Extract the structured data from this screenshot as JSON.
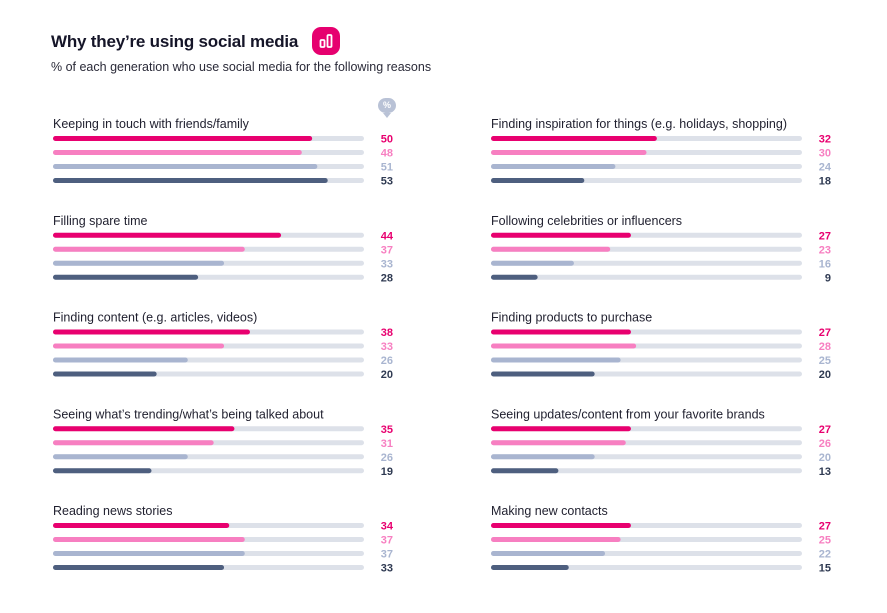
{
  "header": {
    "title": "Why they’re using social media",
    "subtitle": "% of each generation who use social media for the following reasons",
    "unit_marker": "%",
    "badge_icon": "bar-chart-icon"
  },
  "colors": {
    "accent": "#e6006f",
    "series": [
      "#e8006f",
      "#f77fc1",
      "#a9b5d0",
      "#4e5f7f"
    ],
    "value_text": [
      "#e8006f",
      "#f77fc1",
      "#a9b5d0",
      "#2f3a52"
    ],
    "track": "#dde1e9"
  },
  "chart_data": {
    "type": "bar",
    "orientation": "horizontal",
    "title": "Why they’re using social media",
    "subtitle": "% of each generation who use social media for the following reasons",
    "unit": "%",
    "xlim": [
      0,
      60
    ],
    "series_count": 4,
    "categories": [
      {
        "label": "Keeping in touch with friends/family",
        "values": [
          50,
          48,
          51,
          53
        ]
      },
      {
        "label": "Filling spare time",
        "values": [
          44,
          37,
          33,
          28
        ]
      },
      {
        "label": "Finding content (e.g. articles, videos)",
        "values": [
          38,
          33,
          26,
          20
        ]
      },
      {
        "label": "Seeing what’s trending/what’s being talked about",
        "values": [
          35,
          31,
          26,
          19
        ]
      },
      {
        "label": "Reading news stories",
        "values": [
          34,
          37,
          37,
          33
        ]
      },
      {
        "label": "Finding inspiration for things (e.g. holidays, shopping)",
        "values": [
          32,
          30,
          24,
          18
        ]
      },
      {
        "label": "Following celebrities or influencers",
        "values": [
          27,
          23,
          16,
          9
        ]
      },
      {
        "label": "Finding products to purchase",
        "values": [
          27,
          28,
          25,
          20
        ]
      },
      {
        "label": "Seeing updates/content from your favorite brands",
        "values": [
          27,
          26,
          20,
          13
        ]
      },
      {
        "label": "Making new contacts",
        "values": [
          27,
          25,
          22,
          15
        ]
      }
    ]
  }
}
